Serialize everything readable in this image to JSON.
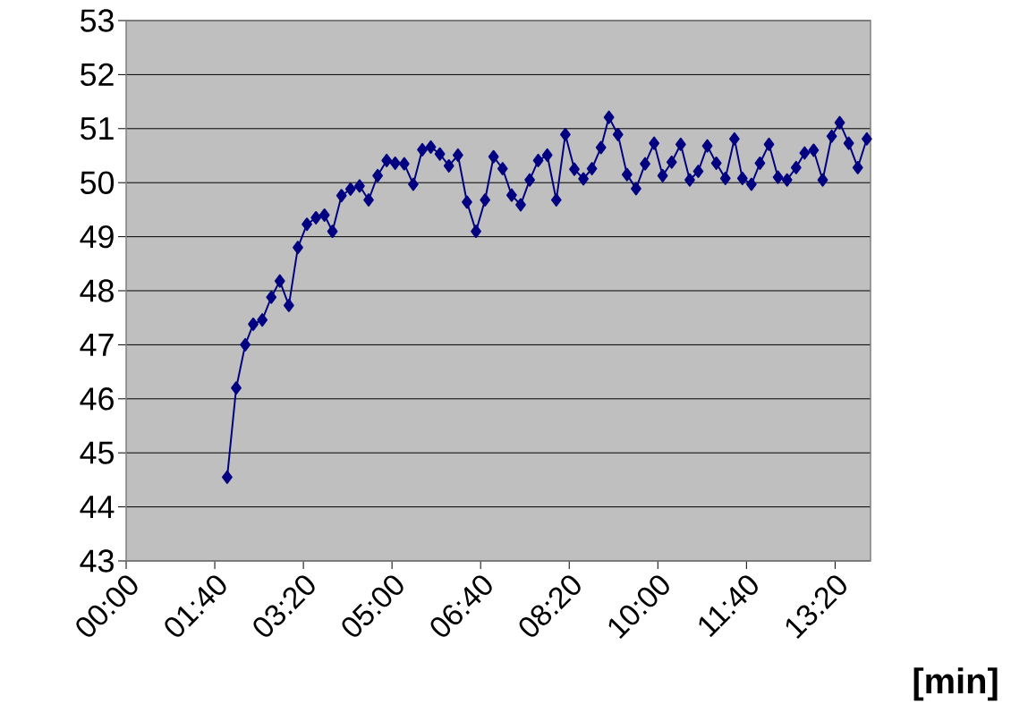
{
  "chart_data": {
    "type": "line",
    "xlabel": "[min]",
    "x": [
      1.9,
      2.07,
      2.24,
      2.39,
      2.56,
      2.73,
      2.89,
      3.06,
      3.23,
      3.4,
      3.57,
      3.73,
      3.88,
      4.05,
      4.22,
      4.39,
      4.56,
      4.73,
      4.9,
      5.06,
      5.23,
      5.4,
      5.57,
      5.73,
      5.9,
      6.07,
      6.24,
      6.41,
      6.58,
      6.75,
      6.91,
      7.08,
      7.25,
      7.42,
      7.59,
      7.75,
      7.92,
      8.09,
      8.26,
      8.43,
      8.6,
      8.76,
      8.93,
      9.08,
      9.25,
      9.42,
      9.59,
      9.76,
      9.93,
      10.09,
      10.26,
      10.43,
      10.6,
      10.76,
      10.93,
      11.1,
      11.27,
      11.44,
      11.59,
      11.76,
      11.92,
      12.09,
      12.26,
      12.43,
      12.6,
      12.76,
      12.93,
      13.1,
      13.27,
      13.42,
      13.59,
      13.76,
      13.93
    ],
    "values": [
      44.55,
      46.2,
      47.0,
      47.38,
      47.46,
      47.88,
      48.18,
      47.73,
      48.8,
      49.23,
      49.35,
      49.4,
      49.1,
      49.76,
      49.88,
      49.94,
      49.68,
      50.13,
      50.41,
      50.36,
      50.35,
      49.97,
      50.61,
      50.66,
      50.53,
      50.31,
      50.51,
      49.64,
      49.1,
      49.68,
      50.48,
      50.26,
      49.77,
      49.59,
      50.05,
      50.41,
      50.51,
      49.68,
      50.89,
      50.25,
      50.07,
      50.26,
      50.65,
      51.21,
      50.89,
      50.15,
      49.89,
      50.35,
      50.73,
      50.13,
      50.38,
      50.71,
      50.05,
      50.21,
      50.68,
      50.36,
      50.08,
      50.81,
      50.08,
      49.97,
      50.36,
      50.71,
      50.1,
      50.05,
      50.28,
      50.55,
      50.6,
      50.05,
      50.86,
      51.11,
      50.73,
      50.28,
      50.81
    ],
    "color": "#000080",
    "marker": "diamond",
    "line_style": "solid",
    "grid": "y",
    "xlim": [
      0,
      14
    ],
    "xticks": [
      {
        "value": 0,
        "label": "00:00"
      },
      {
        "value": 1.6667,
        "label": "01:40"
      },
      {
        "value": 3.3333,
        "label": "03:20"
      },
      {
        "value": 5,
        "label": "05:00"
      },
      {
        "value": 6.6667,
        "label": "06:40"
      },
      {
        "value": 8.3333,
        "label": "08:20"
      },
      {
        "value": 10,
        "label": "10:00"
      },
      {
        "value": 11.6667,
        "label": "11:40"
      },
      {
        "value": 13.3333,
        "label": "13:20"
      }
    ],
    "ylim": [
      43,
      53
    ],
    "yticks": [
      43,
      44,
      45,
      46,
      47,
      48,
      49,
      50,
      51,
      52,
      53
    ]
  }
}
